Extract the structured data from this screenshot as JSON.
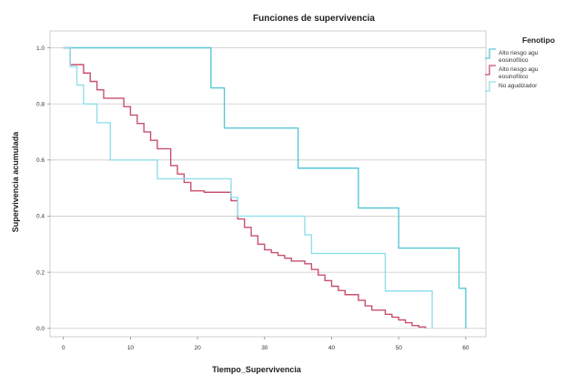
{
  "chart_data": {
    "type": "line",
    "subtype": "step",
    "title": "Funciones de supervivencia",
    "xlabel": "Tiempo_Supervivencia",
    "ylabel": "Supervivencia acumulada",
    "xlim": [
      -2,
      63
    ],
    "ylim": [
      -0.03,
      1.06
    ],
    "xticks": [
      "0",
      "10",
      "20",
      "30",
      "40",
      "50",
      "60"
    ],
    "yticks": [
      "0.0",
      "0.2",
      "0.4",
      "0.6",
      "0.8",
      "1.0"
    ],
    "grid": "horizontal",
    "legend": {
      "title": "Fenotipo",
      "placement": "right",
      "entries": [
        {
          "label_line1": "Alto riesgo agu",
          "label_line2": "eosinofílico",
          "color": "#59c7d6"
        },
        {
          "label_line1": "Alto riesgo agu",
          "label_line2": "eosinofílico",
          "color": "#c8506e"
        },
        {
          "label_line1": "No agudizador",
          "label_line2": "",
          "color": "#8fe0ec"
        }
      ]
    },
    "series": [
      {
        "color": "#59c7d6",
        "x": [
          0,
          22,
          24,
          35,
          44,
          50,
          59,
          60
        ],
        "y": [
          1.0,
          0.857,
          0.714,
          0.571,
          0.429,
          0.286,
          0.143,
          0.0
        ]
      },
      {
        "color": "#c8506e",
        "x": [
          0,
          1,
          3,
          4,
          5,
          6,
          9,
          10,
          11,
          12,
          13,
          14,
          16,
          17,
          18,
          19,
          21,
          25,
          26,
          27,
          28,
          29,
          30,
          31,
          32,
          33,
          34,
          36,
          37,
          38,
          39,
          40,
          41,
          42,
          44,
          45,
          46,
          48,
          49,
          50,
          51,
          52,
          53,
          54
        ],
        "y": [
          1.0,
          0.94,
          0.91,
          0.88,
          0.85,
          0.82,
          0.79,
          0.76,
          0.73,
          0.7,
          0.67,
          0.64,
          0.58,
          0.55,
          0.52,
          0.49,
          0.485,
          0.455,
          0.39,
          0.36,
          0.33,
          0.3,
          0.28,
          0.27,
          0.26,
          0.25,
          0.24,
          0.23,
          0.21,
          0.19,
          0.17,
          0.15,
          0.135,
          0.12,
          0.1,
          0.08,
          0.065,
          0.05,
          0.04,
          0.03,
          0.02,
          0.01,
          0.005,
          0.0
        ]
      },
      {
        "color": "#8fe0ec",
        "x": [
          0,
          1,
          2,
          3,
          5,
          7,
          14,
          15,
          25,
          26,
          36,
          37,
          41,
          48,
          55
        ],
        "y": [
          1.0,
          0.933,
          0.867,
          0.8,
          0.733,
          0.6,
          0.533,
          0.533,
          0.467,
          0.4,
          0.333,
          0.267,
          0.267,
          0.133,
          0.0
        ]
      }
    ]
  }
}
